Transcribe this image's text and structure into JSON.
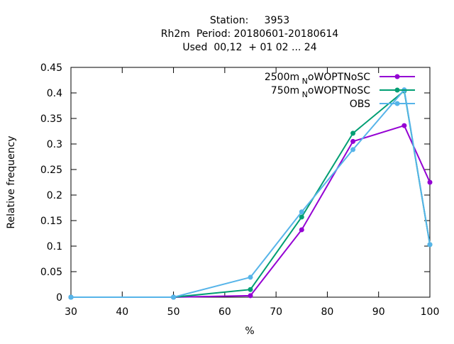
{
  "chart_data": {
    "type": "line",
    "title_lines": [
      "Station:     3953",
      "Rh2m  Period: 20180601-20180614",
      "Used  00,12  + 01 02 ... 24"
    ],
    "xlabel": "%",
    "ylabel": "Relative frequency",
    "xlim": [
      30,
      100
    ],
    "ylim": [
      0,
      0.45
    ],
    "xticks": [
      "30",
      "40",
      "50",
      "60",
      "70",
      "80",
      "90",
      "100"
    ],
    "yticks": [
      "0",
      "0.05",
      "0.1",
      "0.15",
      "0.2",
      "0.25",
      "0.3",
      "0.35",
      "0.4",
      "0.45"
    ],
    "legend_position": "top-right",
    "grid": false,
    "series": [
      {
        "name_main": "2500m",
        "name_sub": "N",
        "name_rest": "oWOPTNoSC",
        "color": "#9400d3",
        "x": [
          30,
          50,
          65,
          75,
          85,
          95,
          100
        ],
        "y": [
          0,
          0,
          0.003,
          0.132,
          0.305,
          0.336,
          0.225
        ]
      },
      {
        "name_main": "750m",
        "name_sub": "N",
        "name_rest": "oWOPTNoSC",
        "color": "#009e73",
        "x": [
          30,
          50,
          65,
          75,
          85,
          95,
          100
        ],
        "y": [
          0,
          0,
          0.015,
          0.157,
          0.321,
          0.404,
          0.103
        ]
      },
      {
        "name_main": "OBS",
        "name_sub": "",
        "name_rest": "",
        "color": "#56b4e9",
        "x": [
          30,
          50,
          65,
          75,
          85,
          95,
          100
        ],
        "y": [
          0,
          0,
          0.039,
          0.167,
          0.289,
          0.406,
          0.103
        ]
      }
    ]
  }
}
